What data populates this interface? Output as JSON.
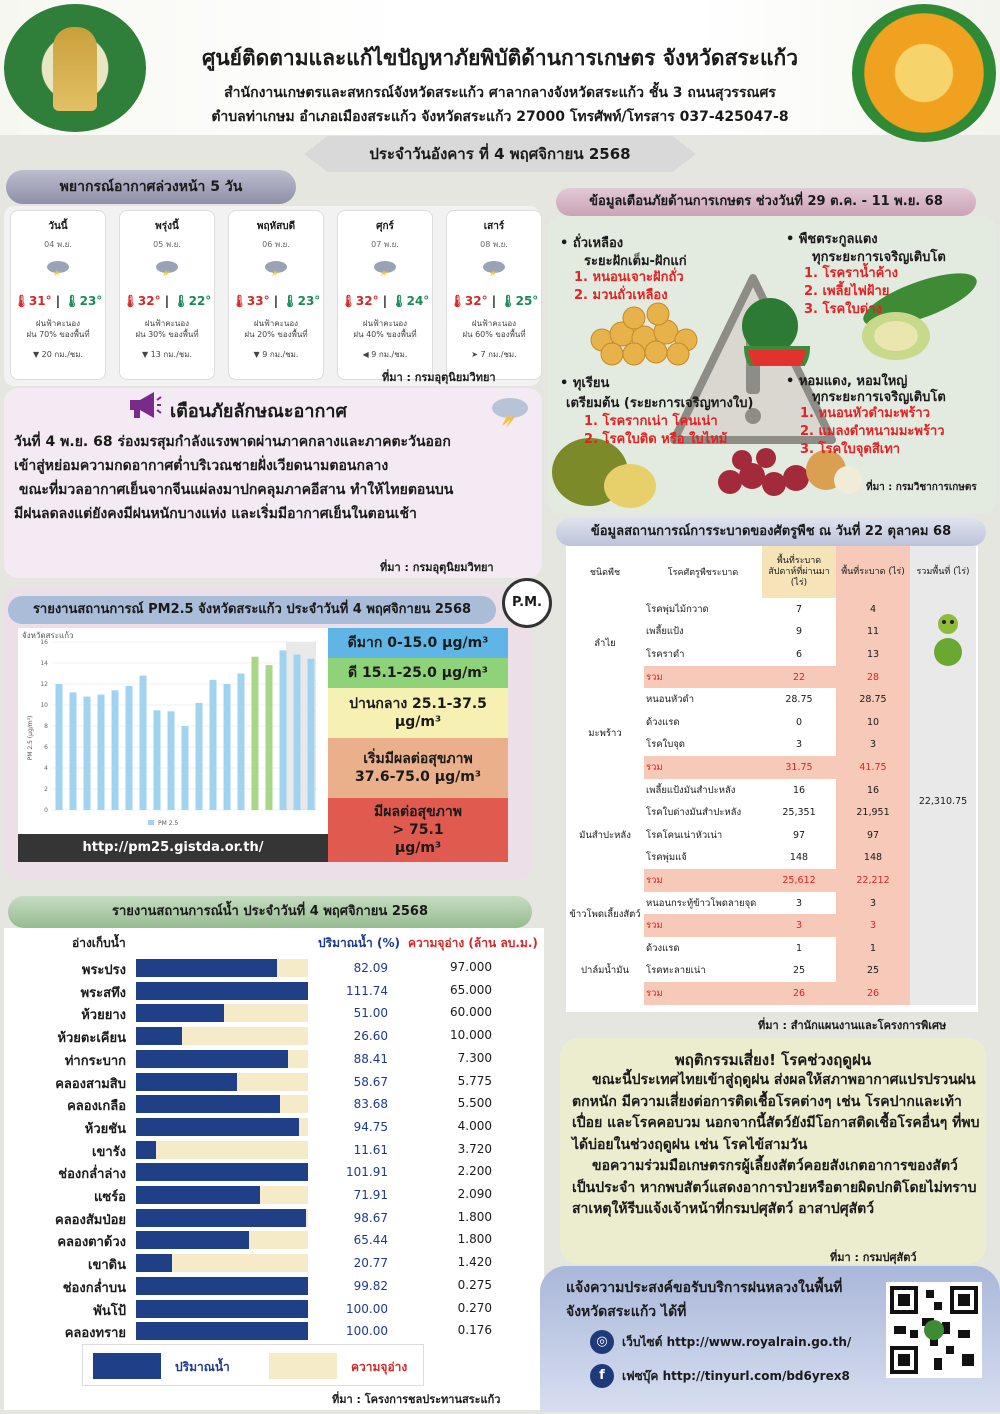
{
  "header": {
    "title": "ศูนย์ติดตามและแก้ไขปัญหาภัยพิบัติด้านการเกษตร จังหวัดสระแก้ว",
    "line1": "สำนักงานเกษตรและสหกรณ์จังหวัดสระแก้ว ศาลากลางจังหวัดสระแก้ว ชั้น 3 ถนนสุวรรณศร",
    "line2": "ตำบลท่าเกษม อำเภอเมืองสระแก้ว จังหวัดสระแก้ว 27000 โทรศัพท์/โทรสาร 037-425047-8",
    "date": "ประจำวันอังคาร ที่ 4 พฤศจิกายน 2568",
    "logo_left_text": "MINISTRY OF AGRICULTURE AND COOPERATIVES"
  },
  "forecast": {
    "title": "พยากรณ์อากาศล่วงหน้า 5 วัน",
    "source": "ที่มา : กรมอุตุนิยมวิทยา",
    "days": [
      {
        "day": "วันนี้",
        "date": "04 พ.ย.",
        "hi": "31°",
        "lo": "23°",
        "desc": "ฝนฟ้าคะนอง",
        "rain": "ฝน 70% ของพื้นที่",
        "wind": "▼ 20 กม./ชม."
      },
      {
        "day": "พรุ่งนี้",
        "date": "05 พ.ย.",
        "hi": "32°",
        "lo": "22°",
        "desc": "ฝนฟ้าคะนอง",
        "rain": "ฝน 30% ของพื้นที่",
        "wind": "▼ 13 กม./ชม."
      },
      {
        "day": "พฤหัสบดี",
        "date": "06 พ.ย.",
        "hi": "33°",
        "lo": "23°",
        "desc": "ฝนฟ้าคะนอง",
        "rain": "ฝน 20% ของพื้นที่",
        "wind": "▼ 9 กม./ชม."
      },
      {
        "day": "ศุกร์",
        "date": "07 พ.ย.",
        "hi": "32°",
        "lo": "24°",
        "desc": "ฝนฟ้าคะนอง",
        "rain": "ฝน 40% ของพื้นที่",
        "wind": "◀ 9 กม./ชม."
      },
      {
        "day": "เสาร์",
        "date": "08 พ.ย.",
        "hi": "32°",
        "lo": "25°",
        "desc": "ฝนฟ้าคะนอง",
        "rain": "ฝน 60% ของพื้นที่",
        "wind": "➤ 7 กม./ชม."
      }
    ]
  },
  "warning": {
    "title": "เตือนภัยลักษณะอากาศ",
    "lines": [
      "วันที่ 4 พ.ย. 68 ร่องมรสุมกำลังแรงพาดผ่านภาคกลางและภาคตะวันออก",
      "เข้าสู่หย่อมความกดอากาศต่ำบริเวณชายฝั่งเวียดนามตอนกลาง",
      " ขณะที่มวลอากาศเย็นจากจีนแผ่ลงมาปกคลุมภาคอีสาน ทำให้ไทยตอนบน",
      "มีฝนลดลงแต่ยังคงมีฝนหนักบางแห่ง และเริ่มมีอากาศเย็นในตอนเช้า"
    ],
    "source": "ที่มา : กรมอุตุนิยมวิทยา"
  },
  "pm": {
    "title": "รายงานสถานการณ์ PM2.5 จังหวัดสระแก้ว ประจำวันที่ 4 พฤศจิกายน 2568",
    "badge": "P.M.",
    "url": "http://pm25.gistda.or.th/",
    "levels": [
      {
        "label": "ดีมาก 0-15.0 µg/m³",
        "color": "#5fb6e6"
      },
      {
        "label": "ดี 15.1-25.0 µg/m³",
        "color": "#8ed37a"
      },
      {
        "label": "ปานกลาง 25.1-37.5 µg/m³",
        "color": "#f6f1b3"
      },
      {
        "label": "เริ่มมีผลต่อสุขภาพ 37.6-75.0 µg/m³",
        "color": "#eab08c"
      },
      {
        "label": "มีผลต่อสุขภาพ > 75.1 µg/m³",
        "color": "#e15a50"
      }
    ]
  },
  "chart_data": {
    "type": "bar",
    "title": "จังหวัดสระแก้ว",
    "ylabel": "PM 2.5 (µg/m³)",
    "ylim": [
      0,
      16
    ],
    "yticks": [
      0,
      2,
      4,
      6,
      8,
      10,
      12,
      14,
      16
    ],
    "series": [
      {
        "name": "PM 2.5",
        "values": [
          12.0,
          11.2,
          10.8,
          11.0,
          11.4,
          11.8,
          12.8,
          9.5,
          9.4,
          8.0,
          10.2,
          12.4,
          12.0,
          13.0,
          14.6,
          13.8,
          15.2,
          14.8,
          14.4
        ]
      }
    ],
    "legend": "PM 2.5"
  },
  "water": {
    "title": "รายงานสถานการณ์น้ำ ประจำวันที่ 4 พฤศจิกายน 2568",
    "col_name": "อ่างเก็บน้ำ",
    "col_pct": "ปริมาณน้ำ (%)",
    "col_cap": "ความจุอ่าง (ล้าน ลบ.ม.)",
    "legend_water": "ปริมาณน้ำ",
    "legend_cap": "ความจุอ่าง",
    "source": "ที่มา : โครงการชลประทานสระแก้ว",
    "rows": [
      {
        "name": "พระปรง",
        "pct": "82.09",
        "cap": "97.000"
      },
      {
        "name": "พระสทึง",
        "pct": "111.74",
        "cap": "65.000"
      },
      {
        "name": "ห้วยยาง",
        "pct": "51.00",
        "cap": "60.000"
      },
      {
        "name": "ห้วยตะเคียน",
        "pct": "26.60",
        "cap": "10.000"
      },
      {
        "name": "ท่ากระบาก",
        "pct": "88.41",
        "cap": "7.300"
      },
      {
        "name": "คลองสามสิบ",
        "pct": "58.67",
        "cap": "5.775"
      },
      {
        "name": "คลองเกลือ",
        "pct": "83.68",
        "cap": "5.500"
      },
      {
        "name": "ห้วยชัน",
        "pct": "94.75",
        "cap": "4.000"
      },
      {
        "name": "เขารัง",
        "pct": "11.61",
        "cap": "3.720"
      },
      {
        "name": "ช่องกล่ำล่าง",
        "pct": "101.91",
        "cap": "2.200"
      },
      {
        "name": "แซร์อ",
        "pct": "71.91",
        "cap": "2.090"
      },
      {
        "name": "คลองสัมป่อย",
        "pct": "98.67",
        "cap": "1.800"
      },
      {
        "name": "คลองตาด้วง",
        "pct": "65.44",
        "cap": "1.800"
      },
      {
        "name": "เขาดิน",
        "pct": "20.77",
        "cap": "1.420"
      },
      {
        "name": "ช่องกล่ำบน",
        "pct": "99.82",
        "cap": "0.275"
      },
      {
        "name": "พันโป้",
        "pct": "100.00",
        "cap": "0.270"
      },
      {
        "name": "คลองทราย",
        "pct": "100.00",
        "cap": "0.176"
      }
    ]
  },
  "hazard": {
    "title": "ข้อมูลเตือนภัยด้านการเกษตร ช่วงวันที่ 29 ต.ค. - 11 พ.ย. 68",
    "source": "ที่มา : กรมวิชาการเกษตร",
    "groups": [
      {
        "crop": "• ถั่วเหลือง",
        "stage": "ระยะฝักเต็ม-ฝักแก่",
        "items": [
          "1. หนอนเจาะฝักถั่ว",
          "2. มวนถั่วเหลือง"
        ]
      },
      {
        "crop": "• พืชตระกูลแตง",
        "stage": "ทุกระยะการเจริญเติบโต",
        "items": [
          "1. โรคราน้ำค้าง",
          "2. เพลี้ยไฟฝ้าย",
          "3. โรคใบด่าง"
        ]
      },
      {
        "crop": "• ทุเรียน",
        "stage": "เตรียมต้น (ระยะการเจริญทางใบ)",
        "items": [
          "1. โรครากเน่า โคนเน่า",
          "2. โรคใบติด หรือ ใบไหม้"
        ]
      },
      {
        "crop": "• หอมแดง, หอมใหญ่",
        "stage": "ทุกระยะการเจริญเติบโต",
        "items": [
          "1. หนอนหัวดำมะพร้าว",
          "2. แมลงดำหนามมะพร้าว",
          "3. โรคใบจุดสีเทา"
        ]
      }
    ]
  },
  "pest": {
    "title": "ข้อมูลสถานการณ์การระบาดของศัตรูพืช ณ วันที่ 22 ตุลาคม 68",
    "headers": [
      "ชนิดพืช",
      "โรคศัตรูพืชระบาด",
      "พื้นที่ระบาด สัปดาห์ที่ผ่านมา (ไร่)",
      "พื้นที่ระบาด (ไร่)",
      "รวมพื้นที่ (ไร่)"
    ],
    "grand_total": "22,310.75",
    "source": "ที่มา : สำนักแผนงานและโครงการพิเศษ",
    "groups": [
      {
        "crop": "ลำไย",
        "rows": [
          [
            "โรคพุ่มไม้กวาด",
            "7",
            "4"
          ],
          [
            "เพลี้ยแป้ง",
            "9",
            "11"
          ],
          [
            "โรคราดำ",
            "6",
            "13"
          ],
          [
            "รวม",
            "22",
            "28"
          ]
        ]
      },
      {
        "crop": "มะพร้าว",
        "rows": [
          [
            "หนอนหัวดำ",
            "28.75",
            "28.75"
          ],
          [
            "ด้วงแรด",
            "0",
            "10"
          ],
          [
            "โรคใบจุด",
            "3",
            "3"
          ],
          [
            "รวม",
            "31.75",
            "41.75"
          ]
        ]
      },
      {
        "crop": "มันสำปะหลัง",
        "rows": [
          [
            "เพลี้ยแป้งมันสำปะหลัง",
            "16",
            "16"
          ],
          [
            "โรคใบด่างมันสำปะหลัง",
            "25,351",
            "21,951"
          ],
          [
            "โรคโคนเน่าหัวเน่า",
            "97",
            "97"
          ],
          [
            "โรคพุ่มแจ้",
            "148",
            "148"
          ],
          [
            "รวม",
            "25,612",
            "22,212"
          ]
        ]
      },
      {
        "crop": "ข้าวโพดเลี้ยงสัตว์",
        "rows": [
          [
            "หนอนกระทู้ข้าวโพดลายจุด",
            "3",
            "3"
          ],
          [
            "รวม",
            "3",
            "3"
          ]
        ]
      },
      {
        "crop": "ปาล์มน้ำมัน",
        "rows": [
          [
            "ด้วงแรด",
            "1",
            "1"
          ],
          [
            "โรคทะลายเน่า",
            "25",
            "25"
          ],
          [
            "รวม",
            "26",
            "26"
          ]
        ]
      }
    ]
  },
  "livestock": {
    "title": "พฤติกรรมเสี่ยง! โรคช่วงฤดูฝน",
    "text": "ขณะนี้ประเทศไทยเข้าสู่ฤดูฝน ส่งผลให้สภาพอากาศแปรปรวนฝนตกหนัก มีความเสี่ยงต่อการติดเชื้อโรคต่างๆ เช่น โรคปากและเท้าเปื่อย และโรคคอบวม นอกจากนี้สัตว์ยังมีโอกาสติดเชื้อโรคอื่นๆ ที่พบได้บ่อยในช่วงฤดูฝน เช่น โรคไข้สามวัน",
    "text2": "ขอความร่วมมือเกษตรกรผู้เลี้ยงสัตว์คอยสังเกตอาการของสัตว์ เป็นประจำ หากพบสัตว์แสดงอาการป่วยหรือตายผิดปกติโดยไม่ทราบสาเหตุให้รีบแจ้งเจ้าหน้าที่กรมปศุสัตว์ อาสาปศุสัตว์",
    "source": "ที่มา : กรมปศุสัตว์"
  },
  "rain_service": {
    "text": "แจ้งความประสงค์ขอรับบริการฝนหลวงในพื้นที่จังหวัดสระแก้ว ได้ที่",
    "website": "เว็บไซต์ http://www.royalrain.go.th/",
    "facebook": "เฟซบุ๊ค http://tinyurl.com/bd6yrex8"
  }
}
